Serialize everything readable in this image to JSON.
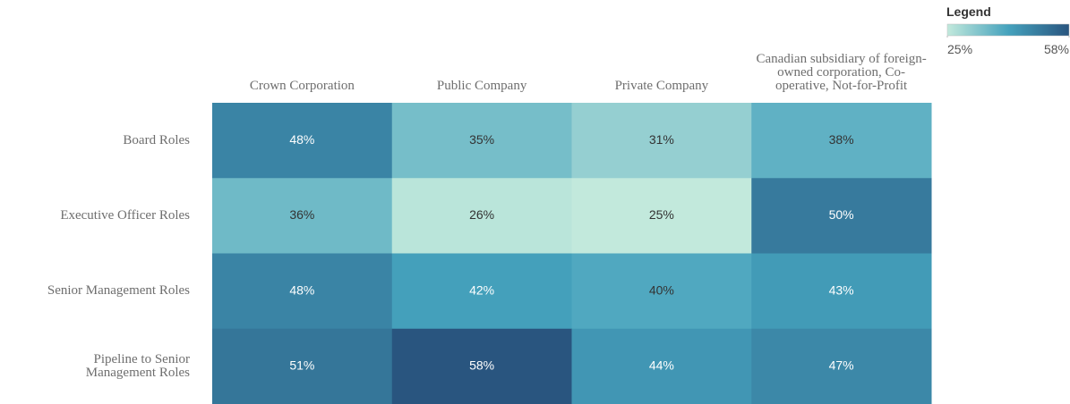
{
  "chart_data": {
    "type": "heatmap",
    "columns": [
      "Crown Corporation",
      "Public Company",
      "Private Company",
      "Canadian subsidiary of foreign-owned corporation, Co-operative, Not-for-Profit"
    ],
    "rows": [
      "Board Roles",
      "Executive Officer Roles",
      "Senior Management Roles",
      "Pipeline to Senior Management Roles"
    ],
    "values": [
      [
        48,
        35,
        31,
        38
      ],
      [
        36,
        26,
        25,
        50
      ],
      [
        48,
        42,
        40,
        43
      ],
      [
        51,
        58,
        44,
        47
      ]
    ],
    "value_labels": [
      [
        "48%",
        "35%",
        "31%",
        "38%"
      ],
      [
        "36%",
        "26%",
        "25%",
        "50%"
      ],
      [
        "48%",
        "42%",
        "40%",
        "43%"
      ],
      [
        "51%",
        "58%",
        "44%",
        "47%"
      ]
    ],
    "legend": {
      "title": "Legend",
      "clim": [
        25,
        58
      ],
      "ticks": [
        {
          "value": 25,
          "label": "25%"
        },
        {
          "value": 58,
          "label": "58%"
        }
      ],
      "colors": [
        "#c2e9dc",
        "#45a2bd",
        "#29557f"
      ]
    }
  }
}
